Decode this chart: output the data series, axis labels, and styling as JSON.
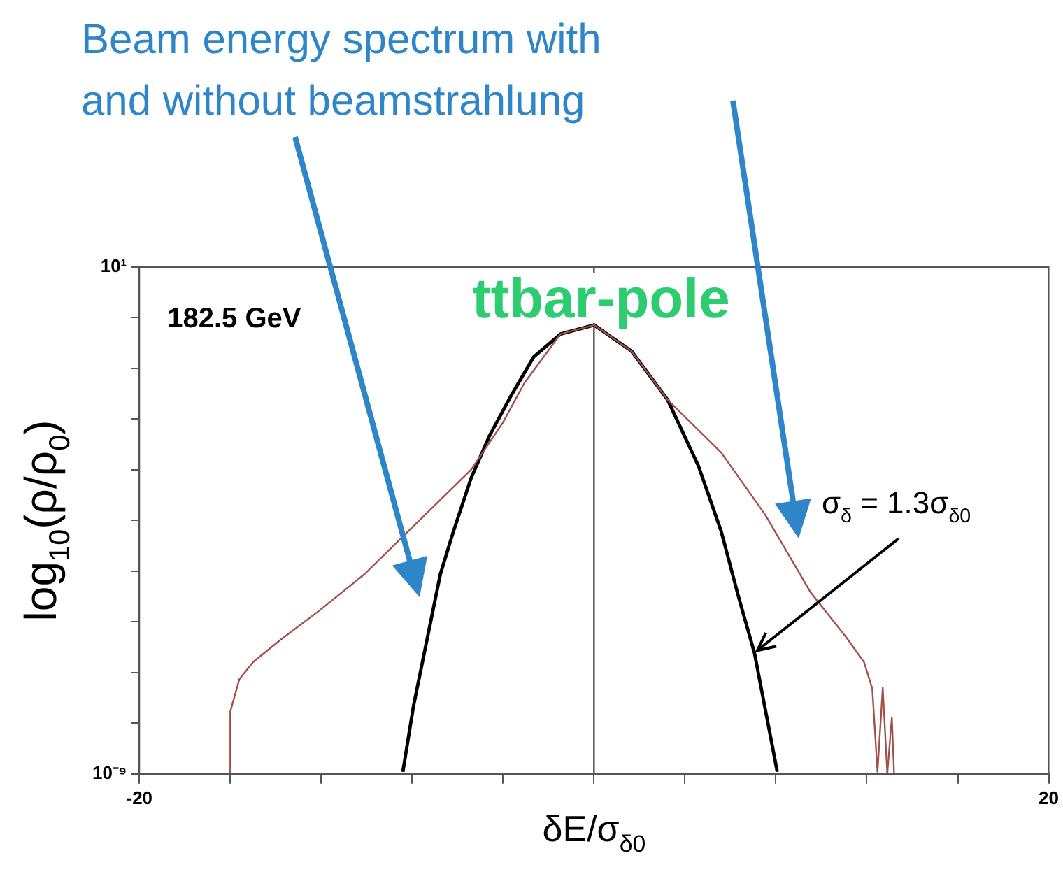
{
  "chart_data": {
    "type": "line",
    "title": "ttbar-pole",
    "xlabel": "δE/σ$_{δ0}$",
    "ylabel": "log$_{10}$(ρ/ρ$_{0}$)",
    "annotations": [
      "Beam energy spectrum with and without beamstrahlung",
      "182.5 GeV",
      {
        "text": "σ$_{δ}$ = 1.3σ$_{δ0}$",
        "x": 7.06,
        "y": 2.4e-07
      }
    ],
    "series": [
      {
        "color": "#a0524a",
        "x": [
          -16,
          -16,
          -15.6,
          -15,
          -13.8,
          -12.06,
          -10.1,
          -7.76,
          -5.41,
          -4.0,
          -3.06,
          -1.47,
          0,
          1.65,
          3.24,
          5.59,
          7.53,
          9.53,
          11.06,
          11.88,
          12.24,
          12.47,
          12.7,
          12.9,
          13.1,
          13.2
        ],
        "values": [
          1e-09,
          1.7e-08,
          7.4e-08,
          1.6e-07,
          4.4e-07,
          1.7e-06,
          8.7e-06,
          9.3e-05,
          0.001,
          0.0087,
          0.052,
          0.48,
          0.72,
          0.22,
          0.024,
          0.0022,
          0.00013,
          3.8e-06,
          5.2e-07,
          1.6e-07,
          4.8e-08,
          1.1e-09,
          5e-08,
          1e-09,
          1.3e-08,
          1e-09
        ]
      },
      {
        "color": "#000000",
        "x": [
          -8.41,
          -7.94,
          -7.35,
          -6.76,
          -6.18,
          -5.41,
          -4.59,
          -3.65,
          -2.65,
          -1.47,
          0,
          1.65,
          3.24,
          4.59,
          5.59,
          6.35,
          7.06,
          8.06
        ],
        "values": [
          1.1e-09,
          2.2e-08,
          4.4e-07,
          8.7e-06,
          6.2e-05,
          0.00068,
          0.0048,
          0.029,
          0.17,
          0.48,
          0.72,
          0.22,
          0.024,
          0.0012,
          6.2e-05,
          3.2e-06,
          2.4e-07,
          1.1e-09
        ]
      }
    ],
    "xlim": [
      -20,
      20
    ],
    "xticks": [
      -20,
      {
        "value": -16,
        "label": null
      },
      {
        "value": -12,
        "label": null
      },
      {
        "value": -8,
        "label": null
      },
      {
        "value": -4,
        "label": null
      },
      {
        "value": 0,
        "label": null
      },
      {
        "value": 4,
        "label": null
      },
      {
        "value": 8,
        "label": null
      },
      {
        "value": 12,
        "label": null
      },
      {
        "value": 16,
        "label": null
      },
      20
    ],
    "ylim": [
      1e-09,
      10
    ],
    "yticks": [
      {
        "value": 1e-09,
        "label": "10⁻⁹"
      },
      {
        "value": 1e-08,
        "label": null
      },
      {
        "value": 1e-07,
        "label": null
      },
      {
        "value": 1e-06,
        "label": null
      },
      {
        "value": 1e-05,
        "label": null
      },
      {
        "value": 0.0001,
        "label": null
      },
      {
        "value": 0.001,
        "label": null
      },
      {
        "value": 0.01,
        "label": null
      },
      {
        "value": 0.1,
        "label": null
      },
      {
        "value": 1,
        "label": null
      },
      {
        "value": 10,
        "label": "10¹"
      }
    ],
    "log": "y",
    "grid": false,
    "legend": false,
    "marker": "none",
    "line_style": "solid",
    "ref_lines": [
      {
        "axis": "x",
        "value": 0,
        "color": "#000000"
      }
    ]
  }
}
